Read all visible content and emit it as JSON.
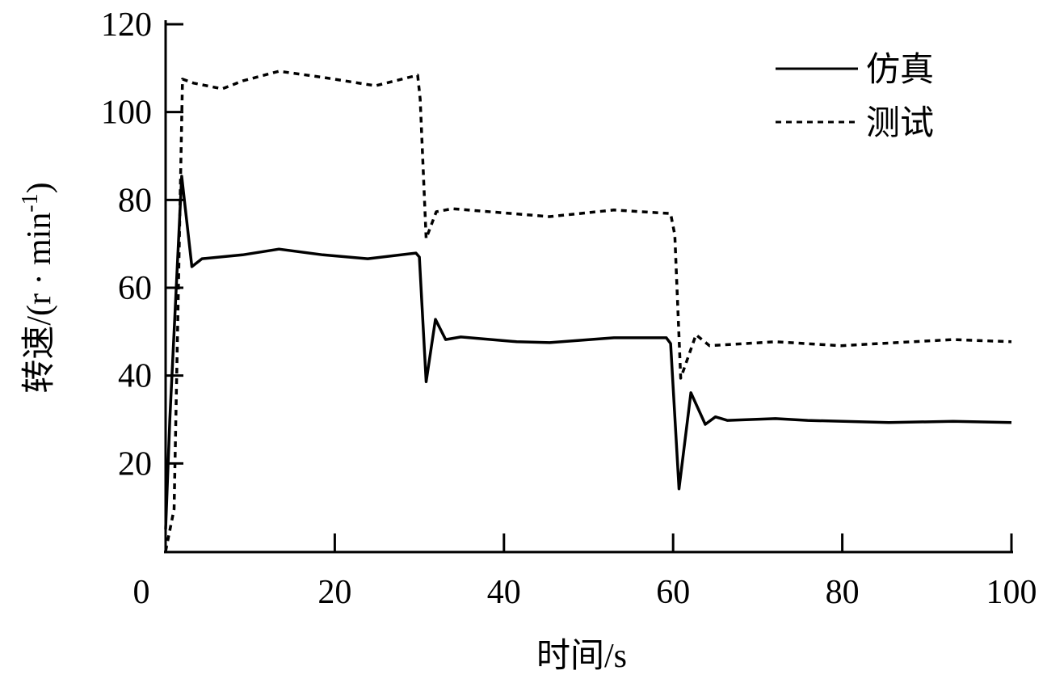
{
  "chart_data": {
    "type": "line",
    "xlabel": "时间/s",
    "ylabel": "转速/(r · min",
    "ylabel_superscript": "-1",
    "ylabel_close": ")",
    "xlim": [
      0,
      100
    ],
    "ylim": [
      0,
      120
    ],
    "xticks": [
      0,
      20,
      40,
      60,
      80,
      100
    ],
    "yticks": [
      20,
      40,
      60,
      80,
      100,
      120
    ],
    "grid": false,
    "legend_position": "top-right",
    "series": [
      {
        "name": "仿真",
        "style": "solid",
        "color": "#000000",
        "x": [
          0,
          0.5,
          1.9,
          3.1,
          4.3,
          9.1,
          13.4,
          18.6,
          23.9,
          29.6,
          30.0,
          30.8,
          31.9,
          33.1,
          34.9,
          41.5,
          45.4,
          53.0,
          59.2,
          59.7,
          60.7,
          62.1,
          63.8,
          65.0,
          66.4,
          72.1,
          75.9,
          85.5,
          93.1,
          100
        ],
        "y": [
          5,
          30,
          85.4,
          64.8,
          66.6,
          67.5,
          68.8,
          67.5,
          66.6,
          67.9,
          67.0,
          38.6,
          52.8,
          48.2,
          48.8,
          47.7,
          47.5,
          48.6,
          48.6,
          47.3,
          14.2,
          36.1,
          28.9,
          30.6,
          29.8,
          30.2,
          29.8,
          29.3,
          29.6,
          29.3
        ]
      },
      {
        "name": "测试",
        "style": "dashed",
        "color": "#000000",
        "x": [
          0,
          1.0,
          2.0,
          3.3,
          6.7,
          9.1,
          13.4,
          18.6,
          24.8,
          29.8,
          30.1,
          30.8,
          32.0,
          33.9,
          45.4,
          53.0,
          59.7,
          60.2,
          60.9,
          62.7,
          64.3,
          72.1,
          79.8,
          86.4,
          93.1,
          100
        ],
        "y": [
          0,
          9.6,
          107.5,
          106.6,
          105.3,
          107.1,
          109.3,
          107.9,
          106.0,
          108.4,
          103.0,
          71.2,
          77.3,
          78.0,
          76.2,
          77.7,
          76.9,
          72.0,
          39.4,
          49.3,
          46.8,
          47.7,
          46.8,
          47.5,
          48.2,
          47.7
        ]
      }
    ]
  }
}
